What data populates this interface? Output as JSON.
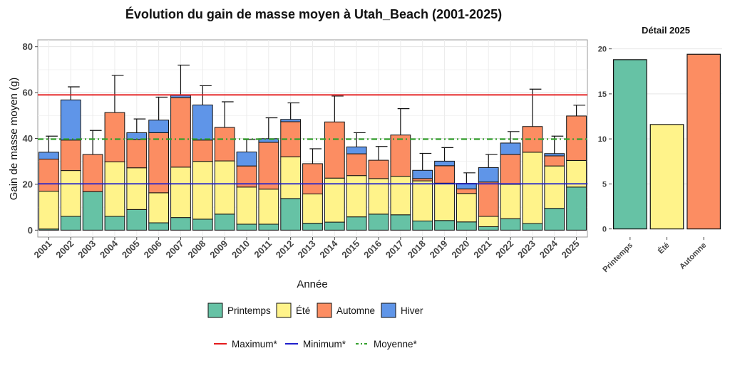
{
  "chart_data": [
    {
      "type": "bar",
      "stacked": true,
      "title": "Évolution du gain de masse moyen à Utah_Beach (2001-2025)",
      "xlabel": "Année",
      "ylabel": "Gain de masse moyen (g)",
      "ylim": [
        -3,
        83
      ],
      "yticks": [
        0,
        20,
        40,
        60,
        80
      ],
      "grid": true,
      "legend_position": "bottom",
      "categories": [
        "2001",
        "2002",
        "2003",
        "2004",
        "2005",
        "2006",
        "2007",
        "2008",
        "2009",
        "2010",
        "2011",
        "2012",
        "2013",
        "2014",
        "2015",
        "2016",
        "2017",
        "2018",
        "2019",
        "2020",
        "2021",
        "2022",
        "2023",
        "2024",
        "2025"
      ],
      "series": [
        {
          "name": "Printemps",
          "color": "#66c2a5",
          "values": [
            0.5,
            6,
            16.8,
            6,
            9,
            3.2,
            5.5,
            4.8,
            7,
            2.6,
            2.6,
            13.8,
            3,
            3.5,
            5.8,
            7,
            6.7,
            4,
            4.2,
            3.6,
            1.5,
            5,
            2.9,
            9.5,
            18.8
          ]
        },
        {
          "name": "Été",
          "color": "#fff38a",
          "values": [
            16.5,
            20,
            0,
            23.8,
            18.2,
            13.1,
            22,
            25.2,
            23.2,
            16.2,
            15.3,
            18.2,
            12.8,
            19.2,
            18,
            15.5,
            16.8,
            17.5,
            16.3,
            12.4,
            4.5,
            15,
            31.1,
            18.5,
            11.6
          ]
        },
        {
          "name": "Automne",
          "color": "#fc8d62",
          "values": [
            14,
            13.3,
            16.2,
            21.5,
            12.3,
            26.2,
            30.3,
            9.3,
            14.6,
            9.2,
            20.4,
            15.3,
            13.2,
            24.5,
            9.5,
            8,
            18,
            1,
            7.6,
            2,
            15,
            13,
            11.2,
            4.4,
            19.4
          ]
        },
        {
          "name": "Hiver",
          "color": "#5f95e8",
          "values": [
            3,
            17.5,
            0,
            0,
            3,
            5.5,
            1,
            15.3,
            0,
            6.1,
            1.6,
            1,
            0,
            0,
            3,
            0,
            0,
            3.6,
            2,
            2.4,
            6.3,
            5,
            0,
            1,
            0
          ]
        }
      ],
      "error_top": [
        41,
        62.5,
        43.5,
        67.5,
        48.5,
        58,
        72,
        63,
        56,
        39.5,
        49,
        55.5,
        35.5,
        58.5,
        42.5,
        36.5,
        53,
        33.5,
        36,
        25,
        33,
        43,
        61.5,
        41,
        54.5
      ],
      "reference_lines": [
        {
          "name": "Maximum*",
          "value": 59,
          "color": "#e41a1c",
          "style": "solid"
        },
        {
          "name": "Minimum*",
          "value": 20.2,
          "color": "#1f1fcc",
          "style": "solid"
        },
        {
          "name": "Moyenne*",
          "value": 39.7,
          "color": "#33a02c",
          "style": "dashdot"
        }
      ]
    },
    {
      "type": "bar",
      "title": "Détail 2025",
      "categories": [
        "Printemps",
        "Été",
        "Automne"
      ],
      "values": [
        18.8,
        11.6,
        19.4
      ],
      "colors": [
        "#66c2a5",
        "#fff38a",
        "#fc8d62"
      ],
      "ylim": [
        -0.9,
        21
      ],
      "yticks": [
        0,
        5,
        10,
        15,
        20
      ]
    }
  ]
}
